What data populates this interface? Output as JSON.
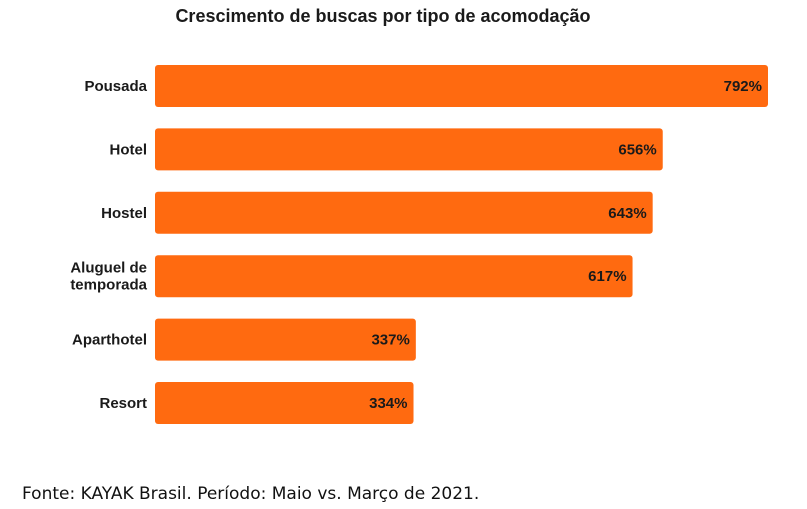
{
  "chart_data": {
    "type": "bar",
    "orientation": "horizontal",
    "title": "Crescimento de buscas por tipo de acomodação",
    "xlabel": "",
    "ylabel": "",
    "categories": [
      "Pousada",
      "Hotel",
      "Hostel",
      "Aluguel de temporada",
      "Aparthotel",
      "Resort"
    ],
    "category_lines": [
      [
        "Pousada"
      ],
      [
        "Hotel"
      ],
      [
        "Hostel"
      ],
      [
        "Aluguel de",
        "temporada"
      ],
      [
        "Aparthotel"
      ],
      [
        "Resort"
      ]
    ],
    "values": [
      792,
      656,
      643,
      617,
      337,
      334
    ],
    "value_labels": [
      "792%",
      "656%",
      "643%",
      "617%",
      "337%",
      "334%"
    ],
    "xlim": [
      0,
      792
    ],
    "grid": false,
    "legend": "none",
    "bar_color": "#FF6A10"
  },
  "footer": {
    "source": "Fonte: KAYAK Brasil. Período: Maio vs. Março de 2021."
  }
}
